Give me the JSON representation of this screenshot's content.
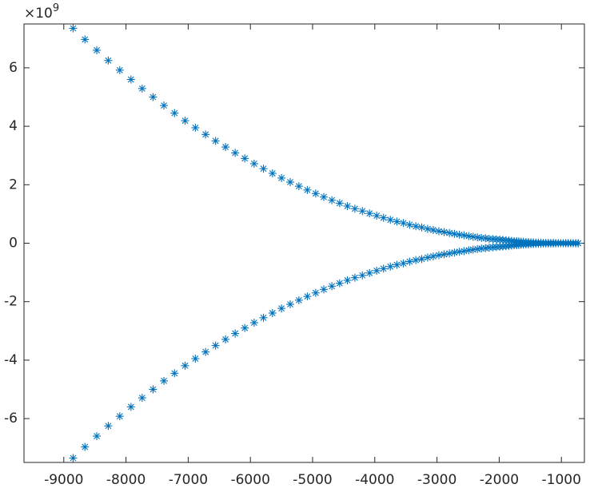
{
  "chart_data": {
    "type": "scatter",
    "marker": "*",
    "grid": false,
    "exponent_label": {
      "base": "×10",
      "power": "9"
    },
    "xlim": [
      -9640,
      -630
    ],
    "ylim": [
      -7.5,
      7.5
    ],
    "xticks": [
      -9000,
      -8000,
      -7000,
      -6000,
      -5000,
      -4000,
      -3000,
      -2000,
      -1000
    ],
    "yticks": [
      -6,
      -4,
      -2,
      0,
      2,
      4,
      6
    ],
    "x": [
      -8850,
      -8660,
      -8470,
      -8285,
      -8100,
      -7920,
      -7740,
      -7565,
      -7390,
      -7220,
      -7050,
      -6885,
      -6720,
      -6560,
      -6400,
      -6245,
      -6090,
      -5940,
      -5790,
      -5645,
      -5500,
      -5360,
      -5220,
      -5085,
      -4950,
      -4820,
      -4690,
      -4565,
      -4440,
      -4320,
      -4200,
      -4085,
      -3970,
      -3860,
      -3750,
      -3645,
      -3540,
      -3440,
      -3340,
      -3245,
      -3150,
      -3060,
      -2970,
      -2885,
      -2800,
      -2720,
      -2640,
      -2565,
      -2490,
      -2420,
      -2350,
      -2285,
      -2220,
      -2160,
      -2100,
      -2045,
      -1990,
      -1940,
      -1890,
      -1845,
      -1800,
      -1760,
      -1720,
      -1685,
      -1650,
      -1610,
      -1570,
      -1530,
      -1490,
      -1450,
      -1410,
      -1370,
      -1330,
      -1290,
      -1250,
      -1210,
      -1170,
      -1130,
      -1090,
      -1050,
      -1010,
      -970,
      -930,
      -890,
      -850,
      -810,
      -770,
      -730
    ],
    "series": [
      {
        "color": "#0072bd",
        "values": [
          7.35,
          6.97,
          6.6,
          6.25,
          5.92,
          5.6,
          5.29,
          5.0,
          4.71,
          4.45,
          4.19,
          3.95,
          3.72,
          3.5,
          3.29,
          3.09,
          2.9,
          2.72,
          2.55,
          2.39,
          2.23,
          2.09,
          1.95,
          1.82,
          1.7,
          1.58,
          1.47,
          1.37,
          1.27,
          1.18,
          1.1,
          1.02,
          0.94,
          0.87,
          0.8,
          0.74,
          0.69,
          0.63,
          0.58,
          0.54,
          0.49,
          0.45,
          0.41,
          0.38,
          0.35,
          0.32,
          0.29,
          0.27,
          0.24,
          0.22,
          0.2,
          0.18,
          0.17,
          0.15,
          0.14,
          0.13,
          0.12,
          0.11,
          0.1,
          0.09,
          0.08,
          0.07,
          0.07,
          0.06,
          0.05,
          0.05,
          0.04,
          0.04,
          0.03,
          0.03,
          0.02,
          0.02,
          0.02,
          0.01,
          0.01,
          0.01,
          0.01,
          0.01,
          0,
          0,
          0,
          0,
          0,
          0,
          0,
          0,
          0,
          0
        ]
      },
      {
        "color": "#0072bd",
        "values": [
          -7.35,
          -6.97,
          -6.6,
          -6.25,
          -5.92,
          -5.6,
          -5.29,
          -5.0,
          -4.71,
          -4.45,
          -4.19,
          -3.95,
          -3.72,
          -3.5,
          -3.29,
          -3.09,
          -2.9,
          -2.72,
          -2.55,
          -2.39,
          -2.23,
          -2.09,
          -1.95,
          -1.82,
          -1.7,
          -1.58,
          -1.47,
          -1.37,
          -1.27,
          -1.18,
          -1.1,
          -1.02,
          -0.94,
          -0.87,
          -0.8,
          -0.74,
          -0.69,
          -0.63,
          -0.58,
          -0.54,
          -0.49,
          -0.45,
          -0.41,
          -0.38,
          -0.35,
          -0.32,
          -0.29,
          -0.27,
          -0.24,
          -0.22,
          -0.2,
          -0.18,
          -0.17,
          -0.15,
          -0.14,
          -0.13,
          -0.12,
          -0.11,
          -0.1,
          -0.09,
          -0.08,
          -0.07,
          -0.07,
          -0.06,
          -0.05,
          -0.05,
          -0.04,
          -0.04,
          -0.03,
          -0.03,
          -0.02,
          -0.02,
          -0.02,
          -0.01,
          -0.01,
          -0.01,
          -0.01,
          -0.01,
          0,
          0,
          0,
          0,
          0,
          0,
          0,
          0,
          0,
          0
        ]
      }
    ]
  }
}
